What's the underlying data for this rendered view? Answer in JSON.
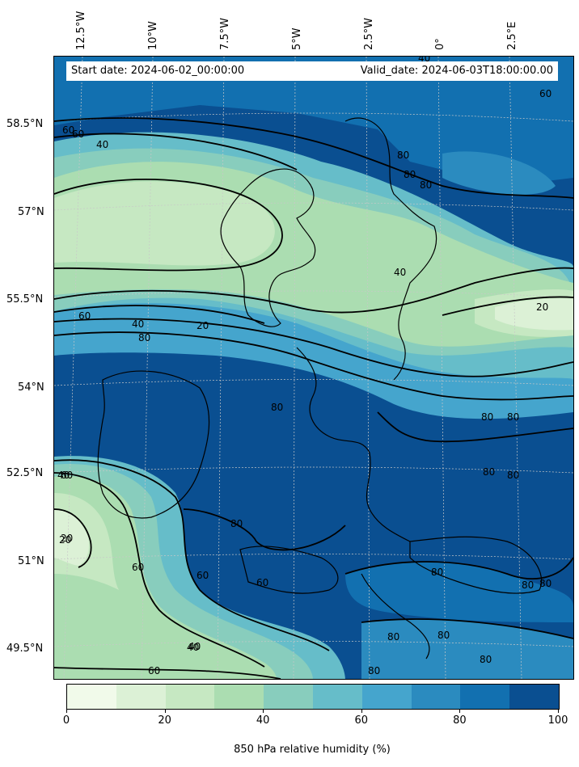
{
  "header": {
    "start_date": "Start date: 2024-06-02_00:00:00",
    "valid_date": "Valid_date: 2024-06-03T18:00:00.00"
  },
  "longitude_labels": [
    "12.5°W",
    "10°W",
    "7.5°W",
    "5°W",
    "2.5°W",
    "0°",
    "2.5°E"
  ],
  "latitude_labels": [
    "58.5°N",
    "57°N",
    "55.5°N",
    "54°N",
    "52.5°N",
    "51°N",
    "49.5°N"
  ],
  "contour_labels": [
    "60",
    "40",
    "20",
    "40",
    "60",
    "80",
    "60",
    "40",
    "20",
    "60",
    "40",
    "80",
    "80",
    "80",
    "80",
    "80",
    "60",
    "60",
    "40",
    "60",
    "80",
    "80",
    "80",
    "80",
    "80",
    "80",
    "80",
    "20",
    "40",
    "60",
    "80",
    "80",
    "80",
    "80",
    "60",
    "40",
    "20"
  ],
  "colorbar": {
    "title": "850 hPa relative humidity (%)",
    "ticks": [
      "0",
      "20",
      "40",
      "60",
      "80",
      "100"
    ],
    "range": [
      0,
      100
    ],
    "colors": [
      "#f1faea",
      "#dcf1d6",
      "#c6e8c2",
      "#abddb1",
      "#88cdbd",
      "#66bdc9",
      "#45a5cd",
      "#2b8bbf",
      "#1270b0",
      "#0a4f91"
    ]
  },
  "field": {
    "variable": "850 hPa relative humidity",
    "units": "%",
    "contour_levels": [
      20,
      40,
      60,
      80
    ]
  }
}
